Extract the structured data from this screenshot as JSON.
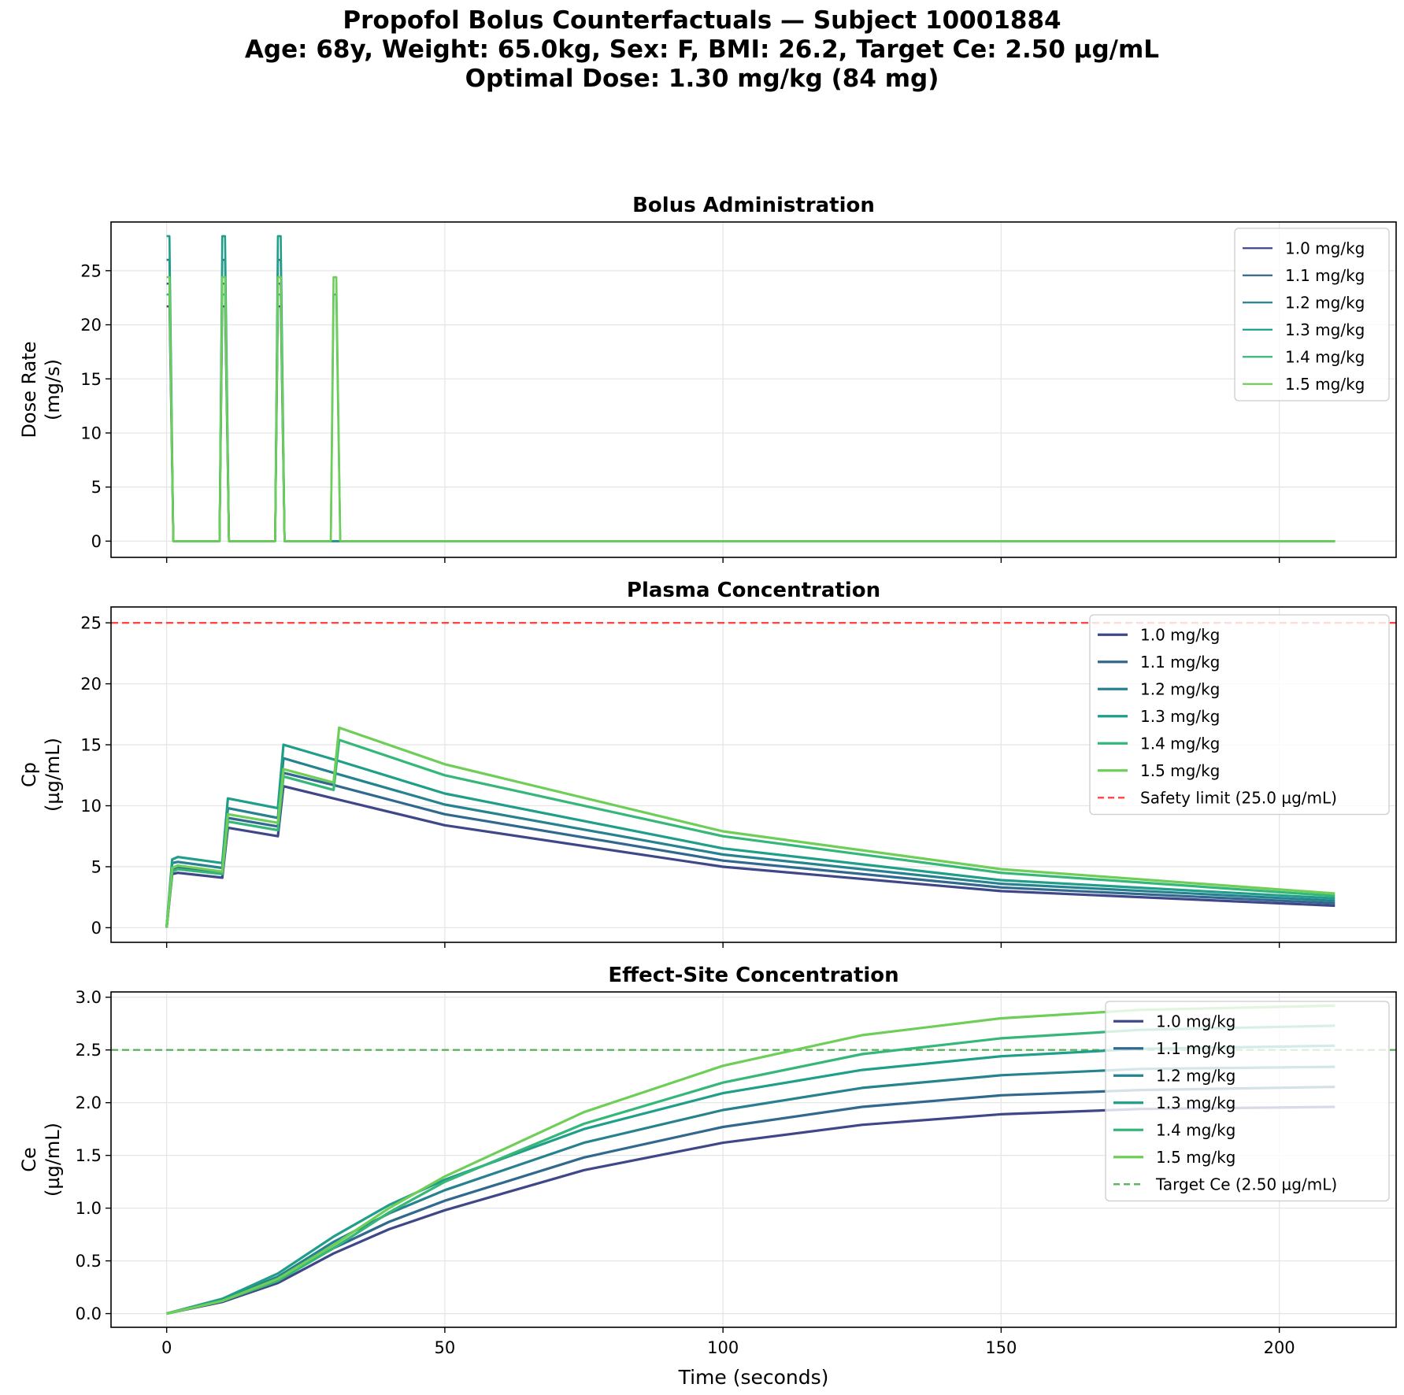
{
  "figure": {
    "title_lines": [
      "Propofol Bolus Counterfactuals — Subject 10001884",
      "Age: 68y, Weight: 65.0kg, Sex: F, BMI: 26.2, Target Ce: 2.50 µg/mL",
      "Optimal Dose: 1.30 mg/kg (84 mg)"
    ],
    "xlabel": "Time (seconds)"
  },
  "colors": {
    "series": [
      "#3f4788",
      "#31688e",
      "#26828e",
      "#1f9e89",
      "#35b779",
      "#6ece58"
    ],
    "safety": "#ff0000",
    "target": "#2ca02c",
    "grid": "#e6e6e6"
  },
  "chart_data": [
    {
      "type": "line",
      "title": "Bolus Administration",
      "xlabel": "Time (seconds)",
      "ylabel": "Dose Rate\n(mg/s)",
      "xlim": [
        -10,
        221
      ],
      "ylim": [
        -1.5,
        29.5
      ],
      "xticks": [
        0,
        50,
        100,
        150,
        200
      ],
      "xtick_labels": [
        "0",
        "50",
        "100",
        "150",
        "200"
      ],
      "yticks": [
        0,
        5,
        10,
        15,
        20,
        25
      ],
      "ytick_labels": [
        "0",
        "5",
        "10",
        "15",
        "20",
        "25"
      ],
      "legend_position": "top-right",
      "series": [
        {
          "name": "1.0 mg/kg",
          "points": [
            [
              0,
              21.7
            ],
            [
              0.5,
              21.7
            ],
            [
              1.2,
              0
            ],
            [
              9.5,
              0
            ],
            [
              10,
              21.7
            ],
            [
              10.5,
              21.7
            ],
            [
              11.2,
              0
            ],
            [
              19.5,
              0
            ],
            [
              20,
              21.7
            ],
            [
              20.5,
              21.7
            ],
            [
              21.2,
              0
            ],
            [
              210,
              0
            ]
          ]
        },
        {
          "name": "1.1 mg/kg",
          "points": [
            [
              0,
              23.8
            ],
            [
              0.5,
              23.8
            ],
            [
              1.2,
              0
            ],
            [
              9.5,
              0
            ],
            [
              10,
              23.8
            ],
            [
              10.5,
              23.8
            ],
            [
              11.2,
              0
            ],
            [
              19.5,
              0
            ],
            [
              20,
              23.8
            ],
            [
              20.5,
              23.8
            ],
            [
              21.2,
              0
            ],
            [
              210,
              0
            ]
          ]
        },
        {
          "name": "1.2 mg/kg",
          "points": [
            [
              0,
              26.0
            ],
            [
              0.5,
              26.0
            ],
            [
              1.2,
              0
            ],
            [
              9.5,
              0
            ],
            [
              10,
              26.0
            ],
            [
              10.5,
              26.0
            ],
            [
              11.2,
              0
            ],
            [
              19.5,
              0
            ],
            [
              20,
              26.0
            ],
            [
              20.5,
              26.0
            ],
            [
              21.2,
              0
            ],
            [
              210,
              0
            ]
          ]
        },
        {
          "name": "1.3 mg/kg",
          "points": [
            [
              0,
              28.2
            ],
            [
              0.5,
              28.2
            ],
            [
              1.2,
              0
            ],
            [
              9.5,
              0
            ],
            [
              10,
              28.2
            ],
            [
              10.5,
              28.2
            ],
            [
              11.2,
              0
            ],
            [
              19.5,
              0
            ],
            [
              20,
              28.2
            ],
            [
              20.5,
              28.2
            ],
            [
              21.2,
              0
            ],
            [
              210,
              0
            ]
          ]
        },
        {
          "name": "1.4 mg/kg",
          "points": [
            [
              0,
              22.8
            ],
            [
              0.5,
              22.8
            ],
            [
              1.2,
              0
            ],
            [
              9.5,
              0
            ],
            [
              10,
              22.8
            ],
            [
              10.5,
              22.8
            ],
            [
              11.2,
              0
            ],
            [
              19.5,
              0
            ],
            [
              20,
              22.8
            ],
            [
              20.5,
              22.8
            ],
            [
              21.2,
              0
            ],
            [
              29.5,
              0
            ],
            [
              30,
              22.8
            ],
            [
              30.5,
              22.8
            ],
            [
              31.2,
              0
            ],
            [
              210,
              0
            ]
          ]
        },
        {
          "name": "1.5 mg/kg",
          "points": [
            [
              0,
              24.4
            ],
            [
              0.5,
              24.4
            ],
            [
              1.2,
              0
            ],
            [
              9.5,
              0
            ],
            [
              10,
              24.4
            ],
            [
              10.5,
              24.4
            ],
            [
              11.2,
              0
            ],
            [
              19.5,
              0
            ],
            [
              20,
              24.4
            ],
            [
              20.5,
              24.4
            ],
            [
              21.2,
              0
            ],
            [
              29.5,
              0
            ],
            [
              30,
              24.4
            ],
            [
              30.5,
              24.4
            ],
            [
              31.2,
              0
            ],
            [
              210,
              0
            ]
          ]
        }
      ]
    },
    {
      "type": "line",
      "title": "Plasma Concentration",
      "xlabel": "Time (seconds)",
      "ylabel": "Cp\n(µg/mL)",
      "xlim": [
        -10,
        221
      ],
      "ylim": [
        -1.2,
        26.3
      ],
      "xticks": [
        0,
        50,
        100,
        150,
        200
      ],
      "xtick_labels": [
        "0",
        "50",
        "100",
        "150",
        "200"
      ],
      "yticks": [
        0,
        5,
        10,
        15,
        20,
        25
      ],
      "ytick_labels": [
        "0",
        "5",
        "10",
        "15",
        "20",
        "25"
      ],
      "legend_position": "top-right",
      "reference_line": {
        "y": 25.0,
        "label": "Safety limit (25.0 µg/mL)",
        "style": "dashed"
      },
      "series": [
        {
          "name": "1.0 mg/kg",
          "points": [
            [
              0,
              0
            ],
            [
              1,
              4.4
            ],
            [
              2,
              4.5
            ],
            [
              10,
              4.1
            ],
            [
              11,
              8.2
            ],
            [
              20,
              7.5
            ],
            [
              21,
              11.6
            ],
            [
              30,
              10.6
            ],
            [
              50,
              8.4
            ],
            [
              100,
              5.0
            ],
            [
              150,
              3.0
            ],
            [
              210,
              1.8
            ]
          ]
        },
        {
          "name": "1.1 mg/kg",
          "points": [
            [
              0,
              0
            ],
            [
              1,
              4.8
            ],
            [
              2,
              5.0
            ],
            [
              10,
              4.5
            ],
            [
              11,
              9.0
            ],
            [
              20,
              8.3
            ],
            [
              21,
              12.7
            ],
            [
              30,
              11.7
            ],
            [
              50,
              9.3
            ],
            [
              100,
              5.5
            ],
            [
              150,
              3.3
            ],
            [
              210,
              2.0
            ]
          ]
        },
        {
          "name": "1.2 mg/kg",
          "points": [
            [
              0,
              0
            ],
            [
              1,
              5.3
            ],
            [
              2,
              5.4
            ],
            [
              10,
              4.9
            ],
            [
              11,
              9.8
            ],
            [
              20,
              9.0
            ],
            [
              21,
              13.9
            ],
            [
              30,
              12.7
            ],
            [
              50,
              10.1
            ],
            [
              100,
              6.0
            ],
            [
              150,
              3.6
            ],
            [
              210,
              2.2
            ]
          ]
        },
        {
          "name": "1.3 mg/kg",
          "points": [
            [
              0,
              0
            ],
            [
              1,
              5.6
            ],
            [
              2,
              5.8
            ],
            [
              10,
              5.3
            ],
            [
              11,
              10.6
            ],
            [
              20,
              9.8
            ],
            [
              21,
              15.0
            ],
            [
              30,
              13.8
            ],
            [
              50,
              11.0
            ],
            [
              100,
              6.5
            ],
            [
              150,
              3.9
            ],
            [
              210,
              2.4
            ]
          ]
        },
        {
          "name": "1.4 mg/kg",
          "points": [
            [
              0,
              0
            ],
            [
              1,
              4.6
            ],
            [
              2,
              4.8
            ],
            [
              10,
              4.4
            ],
            [
              11,
              8.7
            ],
            [
              20,
              8.0
            ],
            [
              21,
              12.4
            ],
            [
              30,
              11.3
            ],
            [
              31,
              15.4
            ],
            [
              50,
              12.5
            ],
            [
              100,
              7.5
            ],
            [
              150,
              4.5
            ],
            [
              210,
              2.6
            ]
          ]
        },
        {
          "name": "1.5 mg/kg",
          "points": [
            [
              0,
              0
            ],
            [
              1,
              4.9
            ],
            [
              2,
              5.1
            ],
            [
              10,
              4.6
            ],
            [
              11,
              9.3
            ],
            [
              20,
              8.6
            ],
            [
              21,
              13.0
            ],
            [
              30,
              11.9
            ],
            [
              31,
              16.4
            ],
            [
              50,
              13.4
            ],
            [
              100,
              7.9
            ],
            [
              150,
              4.8
            ],
            [
              210,
              2.8
            ]
          ]
        }
      ]
    },
    {
      "type": "line",
      "title": "Effect-Site Concentration",
      "xlabel": "Time (seconds)",
      "ylabel": "Ce\n(µg/mL)",
      "xlim": [
        -10,
        221
      ],
      "ylim": [
        -0.13,
        3.05
      ],
      "xticks": [
        0,
        50,
        100,
        150,
        200
      ],
      "xtick_labels": [
        "0",
        "50",
        "100",
        "150",
        "200"
      ],
      "yticks": [
        0.0,
        0.5,
        1.0,
        1.5,
        2.0,
        2.5,
        3.0
      ],
      "ytick_labels": [
        "0.0",
        "0.5",
        "1.0",
        "1.5",
        "2.0",
        "2.5",
        "3.0"
      ],
      "legend_position": "top-right",
      "reference_line": {
        "y": 2.5,
        "label": "Target Ce (2.50 µg/mL)",
        "style": "dashed"
      },
      "series": [
        {
          "name": "1.0 mg/kg",
          "points": [
            [
              0,
              0
            ],
            [
              10,
              0.11
            ],
            [
              20,
              0.29
            ],
            [
              30,
              0.57
            ],
            [
              40,
              0.8
            ],
            [
              50,
              0.98
            ],
            [
              75,
              1.36
            ],
            [
              100,
              1.62
            ],
            [
              125,
              1.79
            ],
            [
              150,
              1.89
            ],
            [
              175,
              1.94
            ],
            [
              210,
              1.96
            ]
          ]
        },
        {
          "name": "1.1 mg/kg",
          "points": [
            [
              0,
              0
            ],
            [
              10,
              0.12
            ],
            [
              20,
              0.32
            ],
            [
              30,
              0.62
            ],
            [
              40,
              0.87
            ],
            [
              50,
              1.07
            ],
            [
              75,
              1.48
            ],
            [
              100,
              1.77
            ],
            [
              125,
              1.96
            ],
            [
              150,
              2.07
            ],
            [
              175,
              2.12
            ],
            [
              210,
              2.15
            ]
          ]
        },
        {
          "name": "1.2 mg/kg",
          "points": [
            [
              0,
              0
            ],
            [
              10,
              0.13
            ],
            [
              20,
              0.35
            ],
            [
              30,
              0.68
            ],
            [
              40,
              0.95
            ],
            [
              50,
              1.17
            ],
            [
              75,
              1.62
            ],
            [
              100,
              1.93
            ],
            [
              125,
              2.14
            ],
            [
              150,
              2.26
            ],
            [
              175,
              2.32
            ],
            [
              210,
              2.34
            ]
          ]
        },
        {
          "name": "1.3 mg/kg",
          "points": [
            [
              0,
              0
            ],
            [
              10,
              0.14
            ],
            [
              20,
              0.38
            ],
            [
              30,
              0.73
            ],
            [
              40,
              1.03
            ],
            [
              50,
              1.27
            ],
            [
              75,
              1.75
            ],
            [
              100,
              2.09
            ],
            [
              125,
              2.31
            ],
            [
              150,
              2.44
            ],
            [
              175,
              2.51
            ],
            [
              210,
              2.54
            ]
          ]
        },
        {
          "name": "1.4 mg/kg",
          "points": [
            [
              0,
              0
            ],
            [
              10,
              0.12
            ],
            [
              20,
              0.31
            ],
            [
              30,
              0.62
            ],
            [
              40,
              0.96
            ],
            [
              50,
              1.25
            ],
            [
              75,
              1.8
            ],
            [
              100,
              2.19
            ],
            [
              125,
              2.46
            ],
            [
              150,
              2.61
            ],
            [
              175,
              2.69
            ],
            [
              210,
              2.73
            ]
          ]
        },
        {
          "name": "1.5 mg/kg",
          "points": [
            [
              0,
              0
            ],
            [
              10,
              0.12
            ],
            [
              20,
              0.33
            ],
            [
              30,
              0.65
            ],
            [
              40,
              1.0
            ],
            [
              50,
              1.3
            ],
            [
              75,
              1.91
            ],
            [
              100,
              2.35
            ],
            [
              125,
              2.64
            ],
            [
              150,
              2.8
            ],
            [
              175,
              2.88
            ],
            [
              210,
              2.92
            ]
          ]
        }
      ]
    }
  ]
}
